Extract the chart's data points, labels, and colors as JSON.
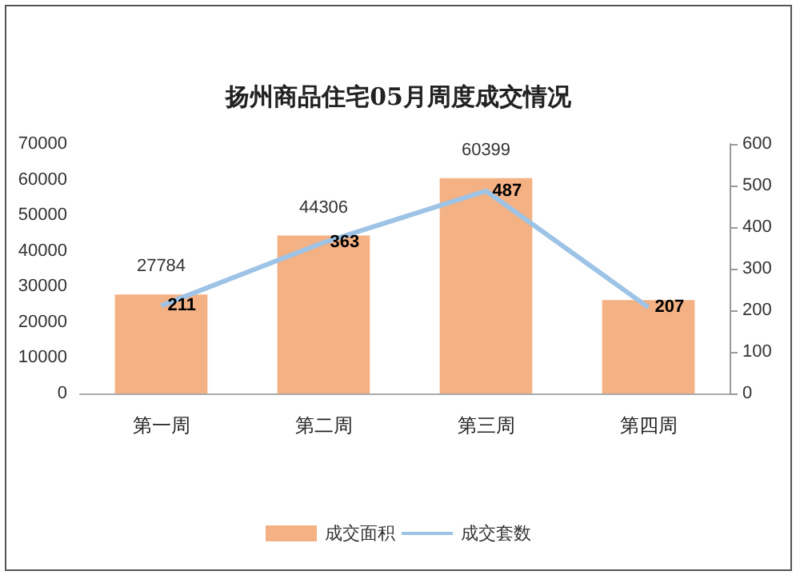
{
  "chart_data": {
    "type": "bar",
    "title": "扬州商品住宅05月周度成交情况",
    "categories": [
      "第一周",
      "第二周",
      "第三周",
      "第四周"
    ],
    "series": [
      {
        "name": "成交面积",
        "color": "#f4b183",
        "values": [
          27784,
          44306,
          60399,
          26200
        ],
        "value_labels": [
          "27784",
          "44306",
          "60399",
          null
        ]
      },
      {
        "name": "成交套数",
        "type": "line",
        "axis": "y2",
        "color": "#9dc3e6",
        "values": [
          211,
          363,
          487,
          207
        ],
        "value_labels": [
          "211",
          "363",
          "487",
          "207"
        ]
      }
    ],
    "ylim": [
      0,
      70000
    ],
    "yticks": [
      0,
      10000,
      20000,
      30000,
      40000,
      50000,
      60000,
      70000
    ],
    "y2lim": [
      0,
      600
    ],
    "y2ticks": [
      0,
      100,
      200,
      300,
      400,
      500,
      600
    ],
    "marker": "none",
    "grid": false,
    "legend": "bottom"
  }
}
